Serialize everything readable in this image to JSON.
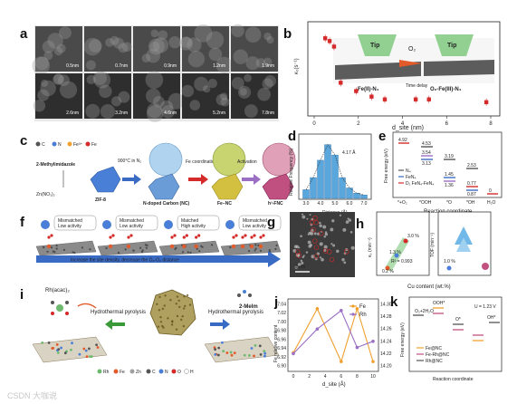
{
  "panels": {
    "a": {
      "label": "a",
      "scales": [
        "0.5nm",
        "0.7nm",
        "0.9nm",
        "1.2nm",
        "1.9nm",
        "2.6nm",
        "3.2nm",
        "4.6nm",
        "5.2nm",
        "7.8nm"
      ]
    },
    "b": {
      "label": "b",
      "ylabel": "κ₀(s⁻¹)",
      "xlabel": "d_site (nm)",
      "xticks": [
        "0",
        "2",
        "4",
        "6",
        "8"
      ],
      "tip_left": "Tip",
      "tip_right": "Tip",
      "o2": "O₂",
      "time_delay": "Time delay",
      "state_left": "Fe(II)-N₄",
      "state_right": "O₂-Fe(III)-N₄"
    },
    "c": {
      "label": "c",
      "legend": [
        "C",
        "N",
        "Fe³⁺",
        "Fe"
      ],
      "precursor1": "2-Methylimidazole",
      "precursor2": "Zn(NO₃)₂",
      "zif": "ZIF-8",
      "nc": "N-doped Carbon (NC)",
      "fenc": "Fe−NC",
      "hfenc": "h³-FNC",
      "step1": "900°C in N₂",
      "step2": "Fe coordination",
      "step3": "Activation"
    },
    "d": {
      "label": "d",
      "ylabel": "Relative Frequency (%)",
      "xlabel": "Distance (Å)",
      "annotation": "4.17 Å"
    },
    "e": {
      "label": "e",
      "ylabel": "Free energy (eV)",
      "xlabel": "Reaction coordinate",
      "legend": [
        "N₄",
        "FeN₄",
        "D₁ FeN₄-FeN₄"
      ],
      "xticks": [
        "*+O₂",
        "*OOH",
        "*O",
        "*OH",
        "H₂O"
      ],
      "values": [
        "4.92",
        "4.53",
        "3.54",
        "3.13",
        "3.19",
        "2.53",
        "1.45",
        "1.36",
        "0.77",
        "0.87",
        "0.57",
        "0"
      ]
    },
    "f": {
      "label": "f",
      "bubbles": [
        "Mismatched Low activity",
        "Mismatched Low activity",
        "Matched High activity",
        "Mismatched Low activity"
      ],
      "arrow_text": "Increase the site density, decrease the O₂-O₂ distance"
    },
    "g": {
      "label": "g",
      "scalebar": "2 nm"
    },
    "h": {
      "label": "h",
      "ylabel_left": "κ₀ (min⁻¹)",
      "ylabel_right": "TOF (min⁻¹)",
      "xlabel": "Cu content (wt.%)",
      "r2": "R² = 0.993",
      "values": [
        "3.0 %",
        "1.3 %",
        "0.2 %",
        "1.0 %"
      ],
      "xticks": [
        "0",
        "1",
        "2",
        "3",
        "4",
        "5"
      ]
    },
    "i": {
      "label": "i",
      "precursor": "Rh(acac)₃",
      "step1": "Hydrothermal pyrolysis",
      "step2": "Hydrothermal pyrolysis",
      "ligand": "2-MeIm",
      "legend": [
        "Rh",
        "Fe",
        "Zn",
        "C",
        "N",
        "O",
        "H"
      ]
    },
    "j": {
      "label": "j",
      "ylabel": "Fe relative content",
      "xlabel": "d_site (Å)",
      "legend": [
        "Fe",
        "Rh"
      ],
      "yticks_left": [
        "6.90",
        "6.92",
        "6.94",
        "6.96",
        "6.98",
        "7.00",
        "7.02",
        "7.04"
      ],
      "yticks_right": [
        "14.20",
        "14.22",
        "14.24",
        "14.26",
        "14.28",
        "14.30"
      ],
      "xticks": [
        "0",
        "2",
        "4",
        "6",
        "8",
        "10"
      ]
    },
    "k": {
      "label": "k",
      "ylabel": "Free energy (eV)",
      "xlabel": "Reaction coordinate",
      "potential": "U = 1.23 V",
      "states": [
        "OOH*",
        "O₂+2H₂O",
        "O*",
        "OH*"
      ],
      "legend": [
        "Fe@NC",
        "Fe-Rh@NC",
        "Rh@NC"
      ]
    },
    "watermark": "CSDN 大咖说"
  },
  "chart_data": [
    {
      "type": "scatter",
      "panel": "b",
      "xlabel": "d_site (nm)",
      "ylabel": "κ₀(s⁻¹)",
      "x": [
        0.5,
        0.7,
        0.9,
        1.2,
        1.9,
        2.6,
        3.2,
        4.6,
        5.2,
        7.8
      ],
      "y": [
        0.31,
        0.3,
        0.28,
        0.15,
        0.12,
        0.1,
        0.09,
        0.09,
        0.09,
        0.08
      ],
      "xlim": [
        0,
        8
      ],
      "color": "#d42a2a"
    },
    {
      "type": "bar",
      "panel": "d",
      "xlabel": "Distance (Å)",
      "ylabel": "Relative Frequency (%)",
      "categories": [
        "3.0",
        "3.5",
        "4.0",
        "4.5",
        "5.0",
        "5.5",
        "6.0",
        "6.5",
        "7.0"
      ],
      "values": [
        5,
        12,
        22,
        31,
        25,
        12,
        6,
        3,
        2
      ],
      "ylim": [
        0,
        35
      ],
      "color": "#5aa7dd"
    },
    {
      "type": "line",
      "panel": "j",
      "xlabel": "d_site (Å)",
      "x": [
        0,
        3,
        6,
        8,
        10
      ],
      "series": [
        {
          "name": "Fe",
          "values": [
            6.93,
            7.03,
            6.91,
            7.03,
            6.91
          ],
          "color": "#f0a030"
        },
        {
          "name": "Rh",
          "values": [
            14.22,
            14.26,
            14.29,
            14.23,
            14.24
          ],
          "color": "#9b6fc4"
        }
      ]
    }
  ]
}
